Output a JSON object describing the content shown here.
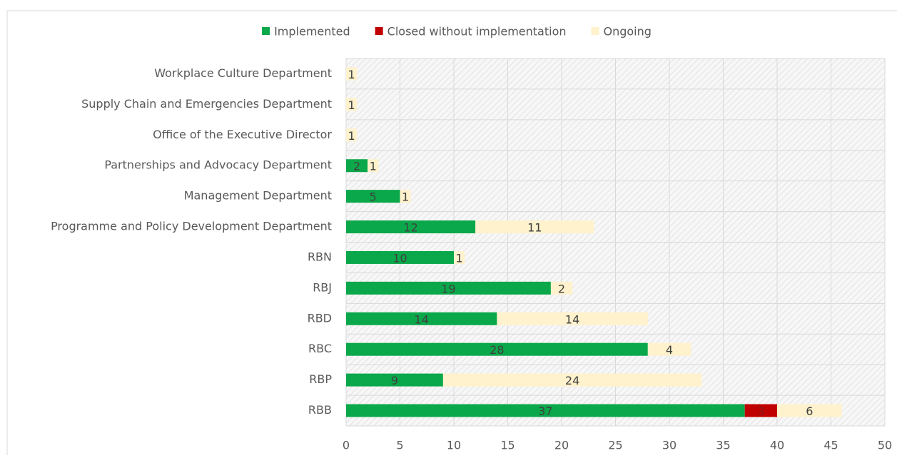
{
  "chart_data": {
    "type": "stacked-barh",
    "categories": [
      "Workplace Culture Department",
      "Supply Chain and Emergencies Department",
      "Office of the Executive Director",
      "Partnerships and Advocacy Department",
      "Management Department",
      "Programme and Policy Development Department",
      "RBN",
      "RBJ",
      "RBD",
      "RBC",
      "RBP",
      "RBB"
    ],
    "series": [
      {
        "name": "Implemented",
        "color": "#0aa84a",
        "values": [
          null,
          null,
          null,
          2,
          5,
          12,
          10,
          19,
          14,
          28,
          9,
          37
        ]
      },
      {
        "name": "Closed without implementation",
        "color": "#c00000",
        "values": [
          null,
          null,
          null,
          null,
          null,
          null,
          null,
          null,
          null,
          null,
          null,
          3
        ]
      },
      {
        "name": "Ongoing",
        "color": "#fff2cc",
        "values": [
          1,
          1,
          1,
          1,
          1,
          11,
          1,
          2,
          14,
          4,
          24,
          6
        ]
      }
    ],
    "xlim": [
      0,
      50
    ],
    "xticks": [
      0,
      5,
      10,
      15,
      20,
      25,
      30,
      35,
      40,
      45,
      50
    ],
    "grid": true,
    "legend": "top"
  }
}
